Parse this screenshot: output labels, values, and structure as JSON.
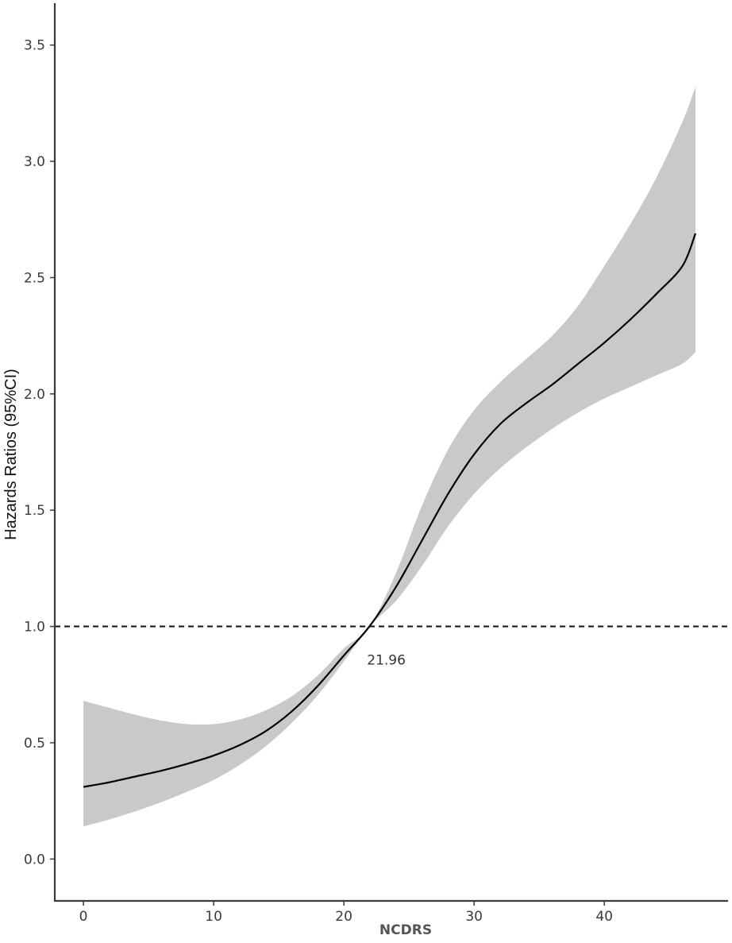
{
  "chart_data": {
    "type": "line",
    "title": "",
    "xlabel": "NCDRS",
    "ylabel": "Hazards Ratios (95%CI)",
    "xlim": [
      -2.2,
      49.5
    ],
    "ylim": [
      -0.18,
      3.68
    ],
    "x_ticks": [
      0,
      10,
      20,
      30,
      40
    ],
    "y_ticks": [
      "0.0",
      "0.5",
      "1.0",
      "1.5",
      "2.0",
      "2.5",
      "3.0",
      "3.5"
    ],
    "grid": false,
    "legend": "none",
    "reference_line": {
      "y": 1.0,
      "style": "dashed"
    },
    "annotation": {
      "text": "21.96",
      "x": 21.96,
      "y": 1.0
    },
    "series": [
      {
        "x": [
          0,
          2,
          4,
          6,
          8,
          10,
          12,
          14,
          16,
          18,
          20,
          21.96,
          24,
          26,
          28,
          30,
          32,
          34,
          36,
          38,
          40,
          42,
          44,
          46,
          47
        ],
        "hr": [
          0.31,
          0.33,
          0.355,
          0.38,
          0.41,
          0.445,
          0.49,
          0.55,
          0.635,
          0.745,
          0.875,
          1.0,
          1.17,
          1.37,
          1.57,
          1.74,
          1.87,
          1.96,
          2.04,
          2.13,
          2.22,
          2.32,
          2.43,
          2.55,
          2.69
        ],
        "lower": [
          0.14,
          0.17,
          0.205,
          0.245,
          0.29,
          0.34,
          0.405,
          0.485,
          0.585,
          0.705,
          0.85,
          1.0,
          1.11,
          1.26,
          1.43,
          1.57,
          1.68,
          1.77,
          1.85,
          1.92,
          1.98,
          2.03,
          2.08,
          2.13,
          2.18
        ],
        "upper": [
          0.68,
          0.65,
          0.62,
          0.595,
          0.58,
          0.58,
          0.6,
          0.64,
          0.7,
          0.79,
          0.905,
          1.0,
          1.23,
          1.52,
          1.76,
          1.93,
          2.05,
          2.15,
          2.25,
          2.38,
          2.55,
          2.73,
          2.93,
          3.17,
          3.32
        ]
      }
    ],
    "colors": {
      "line": "#000000",
      "band": "#c9c9c9",
      "axis": "#3a3a3a"
    }
  }
}
